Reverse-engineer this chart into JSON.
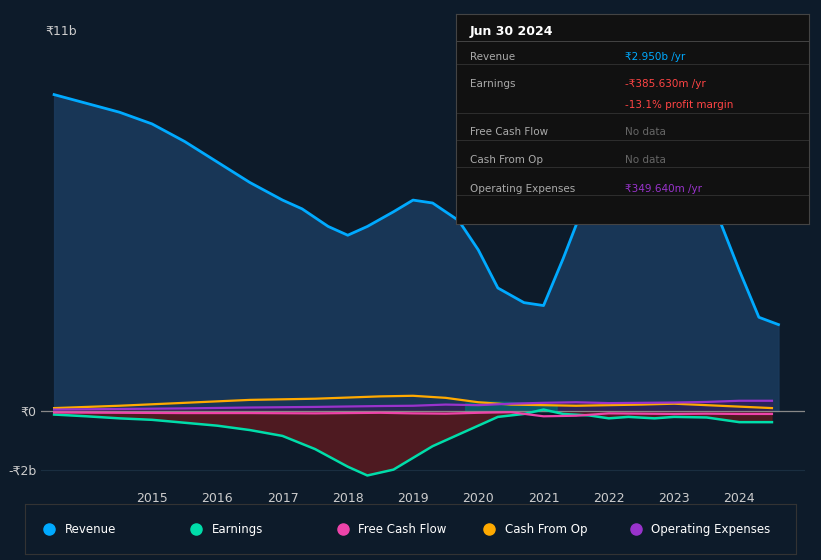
{
  "bg_color": "#0d1b2a",
  "grid_color": "#1a2e40",
  "text_color": "#cccccc",
  "revenue_color": "#00aaff",
  "earnings_color": "#00ddaa",
  "fcf_color": "#ee44aa",
  "cashop_color": "#ffaa00",
  "opex_color": "#9933cc",
  "revenue_fill": "#1a3a5c",
  "earnings_neg_fill": "#5a1a20",
  "cashop_fill_teal": "#007070",
  "opex_fill": "#3a1a5a",
  "revenue_x": [
    2013.5,
    2014.0,
    2014.5,
    2015.0,
    2015.5,
    2016.0,
    2016.5,
    2017.0,
    2017.3,
    2017.7,
    2018.0,
    2018.3,
    2018.7,
    2019.0,
    2019.3,
    2019.7,
    2020.0,
    2020.3,
    2020.7,
    2021.0,
    2021.3,
    2021.7,
    2022.0,
    2022.3,
    2022.7,
    2023.0,
    2023.3,
    2023.7,
    2024.0,
    2024.3,
    2024.6
  ],
  "revenue_y": [
    10.8,
    10.5,
    10.2,
    9.8,
    9.2,
    8.5,
    7.8,
    7.2,
    6.9,
    6.3,
    6.0,
    6.3,
    6.8,
    7.2,
    7.1,
    6.5,
    5.5,
    4.2,
    3.7,
    3.6,
    5.2,
    7.5,
    9.0,
    10.2,
    10.5,
    9.8,
    8.5,
    6.5,
    4.8,
    3.2,
    2.95
  ],
  "earnings_x": [
    2013.5,
    2014.0,
    2014.5,
    2015.0,
    2015.5,
    2016.0,
    2016.5,
    2017.0,
    2017.5,
    2018.0,
    2018.3,
    2018.7,
    2019.0,
    2019.3,
    2019.7,
    2020.0,
    2020.3,
    2020.7,
    2021.0,
    2021.3,
    2021.7,
    2022.0,
    2022.3,
    2022.7,
    2023.0,
    2023.5,
    2024.0,
    2024.5
  ],
  "earnings_y": [
    -0.12,
    -0.18,
    -0.25,
    -0.3,
    -0.4,
    -0.5,
    -0.65,
    -0.85,
    -1.3,
    -1.9,
    -2.2,
    -2.0,
    -1.6,
    -1.2,
    -0.8,
    -0.5,
    -0.2,
    -0.1,
    0.05,
    -0.1,
    -0.15,
    -0.25,
    -0.2,
    -0.25,
    -0.2,
    -0.22,
    -0.38,
    -0.38
  ],
  "fcf_x": [
    2013.5,
    2014.5,
    2015.5,
    2016.5,
    2017.5,
    2018.5,
    2019.0,
    2019.5,
    2020.0,
    2020.5,
    2021.0,
    2021.5,
    2022.0,
    2022.5,
    2023.0,
    2023.5,
    2024.0,
    2024.5
  ],
  "fcf_y": [
    -0.05,
    -0.06,
    -0.07,
    -0.07,
    -0.08,
    -0.06,
    -0.08,
    -0.09,
    -0.06,
    -0.04,
    -0.18,
    -0.16,
    -0.08,
    -0.09,
    -0.1,
    -0.09,
    -0.1,
    -0.1
  ],
  "cashop_x": [
    2013.5,
    2014.5,
    2015.5,
    2016.5,
    2017.5,
    2018.0,
    2018.5,
    2019.0,
    2019.5,
    2020.0,
    2020.5,
    2021.0,
    2021.5,
    2022.0,
    2022.5,
    2023.0,
    2023.5,
    2024.0,
    2024.5
  ],
  "cashop_y": [
    0.1,
    0.18,
    0.28,
    0.38,
    0.42,
    0.46,
    0.5,
    0.52,
    0.45,
    0.3,
    0.22,
    0.2,
    0.18,
    0.2,
    0.22,
    0.25,
    0.2,
    0.15,
    0.1
  ],
  "cashop_fill_x": [
    2019.8,
    2019.9,
    2020.0,
    2020.1,
    2020.2,
    2020.4,
    2020.6,
    2020.8,
    2021.0,
    2021.1,
    2021.2
  ],
  "cashop_fill_top": [
    0.28,
    0.3,
    0.32,
    0.33,
    0.33,
    0.32,
    0.3,
    0.28,
    0.25,
    0.22,
    0.2
  ],
  "opex_x": [
    2013.5,
    2014.5,
    2015.5,
    2016.5,
    2017.5,
    2018.5,
    2019.0,
    2019.5,
    2020.0,
    2020.5,
    2021.0,
    2021.5,
    2022.0,
    2022.5,
    2023.0,
    2023.5,
    2024.0,
    2024.5
  ],
  "opex_y": [
    0.05,
    0.07,
    0.09,
    0.12,
    0.14,
    0.17,
    0.18,
    0.22,
    0.2,
    0.25,
    0.28,
    0.3,
    0.27,
    0.28,
    0.29,
    0.31,
    0.35,
    0.35
  ],
  "ylim_b": -2.6,
  "ylim_t": 12.5,
  "xlim_l": 2013.3,
  "xlim_r": 2025.0,
  "xticks": [
    2015,
    2016,
    2017,
    2018,
    2019,
    2020,
    2021,
    2022,
    2023,
    2024
  ],
  "ytick_vals": [
    -2.0,
    0.0
  ],
  "ytick_labels": [
    "-₹2b",
    "₹0"
  ],
  "top_label": "₹11b",
  "info_title": "Jun 30 2024",
  "info_rows": [
    {
      "label": "Revenue",
      "value": "₹2.950b /yr",
      "color": "#00aaff"
    },
    {
      "label": "Earnings",
      "value": "-₹385.630m /yr",
      "color": "#ff4444"
    },
    {
      "label": "",
      "value": "-13.1% profit margin",
      "color": "#ff4444"
    },
    {
      "label": "Free Cash Flow",
      "value": "No data",
      "color": "#666666"
    },
    {
      "label": "Cash From Op",
      "value": "No data",
      "color": "#666666"
    },
    {
      "label": "Operating Expenses",
      "value": "₹349.640m /yr",
      "color": "#9933cc"
    }
  ],
  "legend_items": [
    {
      "label": "Revenue",
      "color": "#00aaff"
    },
    {
      "label": "Earnings",
      "color": "#00ddaa"
    },
    {
      "label": "Free Cash Flow",
      "color": "#ee44aa"
    },
    {
      "label": "Cash From Op",
      "color": "#ffaa00"
    },
    {
      "label": "Operating Expenses",
      "color": "#9933cc"
    }
  ]
}
